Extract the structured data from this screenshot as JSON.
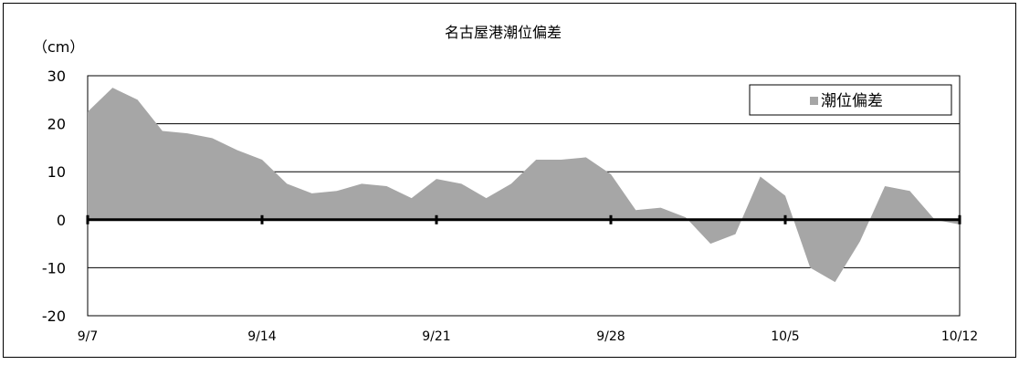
{
  "chart_data": {
    "type": "area",
    "title": "名古屋港潮位偏差",
    "ylabel": "（cm）",
    "xlabel": "",
    "ylim": [
      -20,
      30
    ],
    "yticks": [
      30,
      20,
      10,
      0,
      -10,
      -20
    ],
    "xtick_labels": [
      "9/7",
      "9/14",
      "9/21",
      "9/28",
      "10/5",
      "10/12"
    ],
    "grid": true,
    "legend_position": "top-right",
    "series": [
      {
        "name": "潮位偏差",
        "color": "#a6a6a6",
        "x": [
          "9/7",
          "9/8",
          "9/9",
          "9/10",
          "9/11",
          "9/12",
          "9/13",
          "9/14",
          "9/15",
          "9/16",
          "9/17",
          "9/18",
          "9/19",
          "9/20",
          "9/21",
          "9/22",
          "9/23",
          "9/24",
          "9/25",
          "9/26",
          "9/27",
          "9/28",
          "9/29",
          "9/30",
          "10/1",
          "10/2",
          "10/3",
          "10/4",
          "10/5",
          "10/6",
          "10/7",
          "10/8",
          "10/9",
          "10/10",
          "10/11",
          "10/12"
        ],
        "values": [
          22.5,
          27.5,
          25,
          18.5,
          18,
          17,
          14.5,
          12.5,
          7.5,
          5.5,
          6,
          7.5,
          7,
          4.5,
          8.5,
          7.5,
          4.5,
          7.5,
          12.5,
          12.5,
          13,
          9.5,
          2,
          2.5,
          0.5,
          -5,
          -3,
          9,
          5,
          -10,
          -13,
          -4.5,
          7,
          6,
          0,
          -1
        ]
      }
    ]
  }
}
